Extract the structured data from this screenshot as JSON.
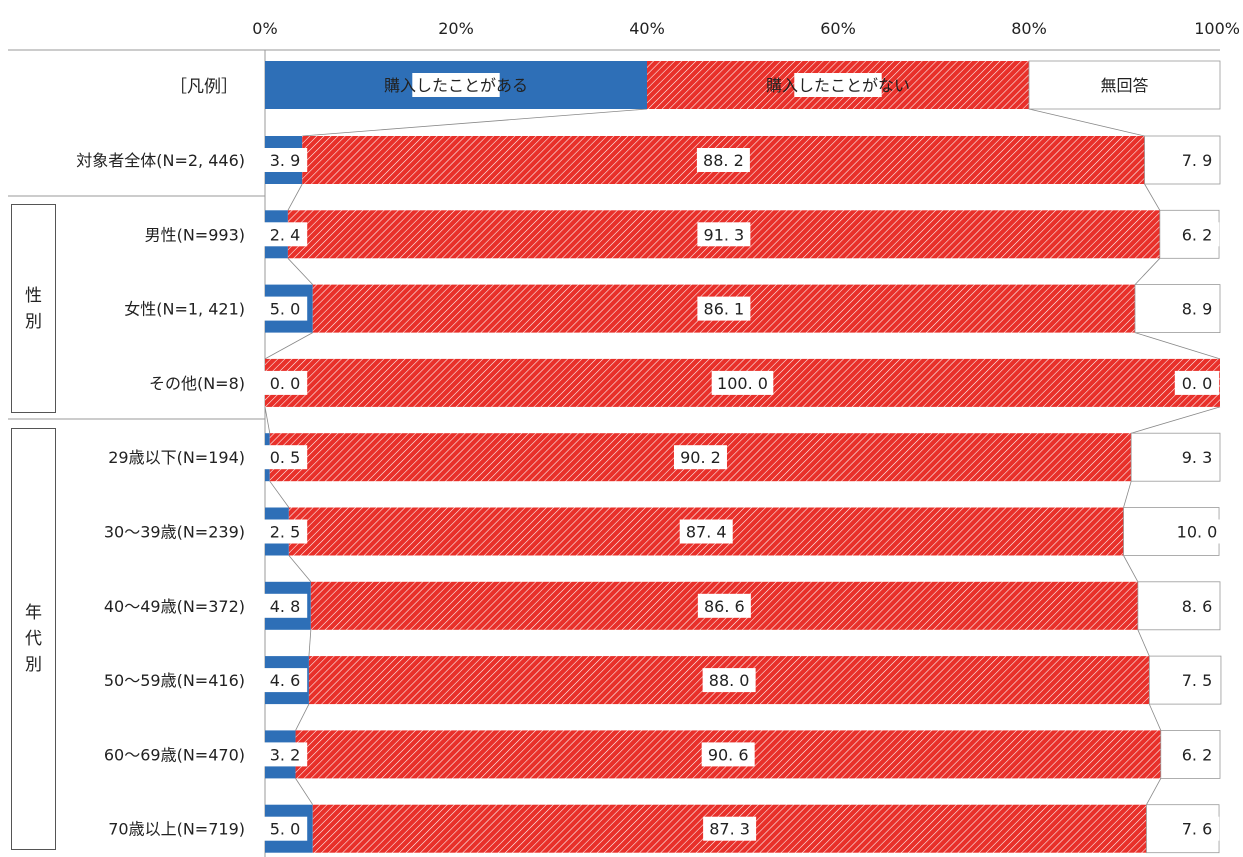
{
  "chart_data": {
    "type": "bar",
    "orientation": "horizontal",
    "stacked": "100%",
    "x_ticks": [
      "0%",
      "20%",
      "40%",
      "60%",
      "80%",
      "100%"
    ],
    "xlim": [
      0,
      100
    ],
    "legend_label": "［凡例］",
    "legend_placement": "top row (legend bar)",
    "series": [
      {
        "name": "購入したことがある",
        "color": "#2e6fb7"
      },
      {
        "name": "購入したことがない",
        "color": "#e8302a",
        "pattern": "diagonal-hatch"
      },
      {
        "name": "無回答",
        "color": "#ffffff"
      }
    ],
    "categories": [
      "対象者全体(N=2, 446)",
      "男性(N=993)",
      "女性(N=1, 421)",
      "その他(N=8)",
      "29歳以下(N=194)",
      "30～39歳(N=239)",
      "40～49歳(N=372)",
      "50～59歳(N=416)",
      "60～69歳(N=470)",
      "70歳以上(N=719)"
    ],
    "values": [
      [
        3.9,
        88.2,
        7.9
      ],
      [
        2.4,
        91.3,
        6.2
      ],
      [
        5.0,
        86.1,
        8.9
      ],
      [
        0.0,
        100.0,
        0.0
      ],
      [
        0.5,
        90.2,
        9.3
      ],
      [
        2.5,
        87.4,
        10.0
      ],
      [
        4.8,
        86.6,
        8.6
      ],
      [
        4.6,
        88.0,
        7.5
      ],
      [
        3.2,
        90.6,
        6.2
      ],
      [
        5.0,
        87.3,
        7.6
      ]
    ],
    "value_labels": [
      [
        "3. 9",
        "88. 2",
        "7. 9"
      ],
      [
        "2. 4",
        "91. 3",
        "6. 2"
      ],
      [
        "5. 0",
        "86. 1",
        "8. 9"
      ],
      [
        "0. 0",
        "100. 0",
        "0. 0"
      ],
      [
        "0. 5",
        "90. 2",
        "9. 3"
      ],
      [
        "2. 5",
        "87. 4",
        "10. 0"
      ],
      [
        "4. 8",
        "86. 6",
        "8. 6"
      ],
      [
        "4. 6",
        "88. 0",
        "7. 5"
      ],
      [
        "3. 2",
        "90. 6",
        "6. 2"
      ],
      [
        "5. 0",
        "87. 3",
        "7. 6"
      ]
    ],
    "legend_bar_values": [
      40,
      40,
      20
    ],
    "groups": [
      {
        "label": "性別",
        "rows": [
          1,
          2,
          3
        ]
      },
      {
        "label": "年代別",
        "rows": [
          4,
          5,
          6,
          7,
          8,
          9
        ]
      }
    ],
    "grid": false
  }
}
